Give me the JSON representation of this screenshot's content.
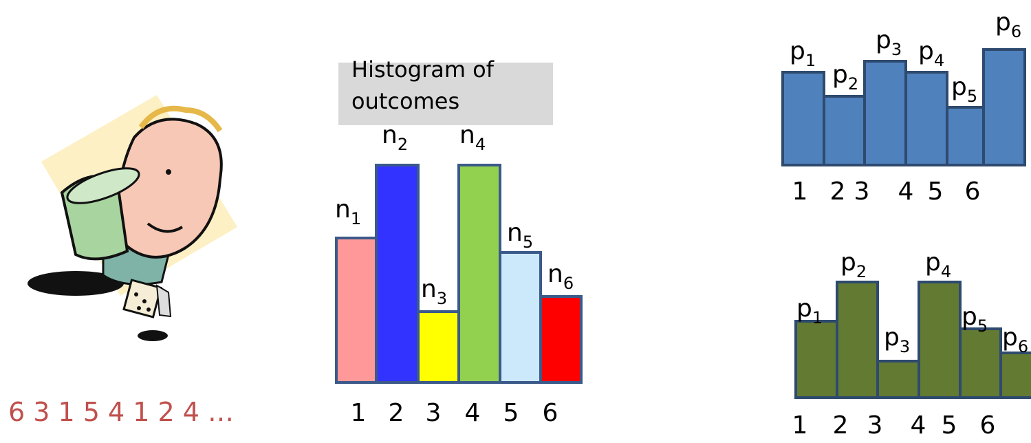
{
  "sequence": "6 3 1 5 4 1 2 4 …",
  "histogram": {
    "title_lines": [
      "Histogram of",
      "outcomes"
    ],
    "bars": [
      {
        "label": "n",
        "subscript": "1",
        "category": "1"
      },
      {
        "label": "n",
        "subscript": "2",
        "category": "2"
      },
      {
        "label": "n",
        "subscript": "3",
        "category": "3"
      },
      {
        "label": "n",
        "subscript": "4",
        "category": "4"
      },
      {
        "label": "n",
        "subscript": "5",
        "category": "5"
      },
      {
        "label": "n",
        "subscript": "6",
        "category": "6"
      }
    ]
  },
  "distribution_a": {
    "bars": [
      {
        "label": "p",
        "subscript": "1",
        "category": "1"
      },
      {
        "label": "p",
        "subscript": "2",
        "category": "2"
      },
      {
        "label": "p",
        "subscript": "3",
        "category": "3"
      },
      {
        "label": "p",
        "subscript": "4",
        "category": "4"
      },
      {
        "label": "p",
        "subscript": "5",
        "category": "5"
      },
      {
        "label": "p",
        "subscript": "6",
        "category": "6"
      }
    ]
  },
  "distribution_b": {
    "bars": [
      {
        "label": "p",
        "subscript": "1",
        "category": "1"
      },
      {
        "label": "p",
        "subscript": "2",
        "category": "2"
      },
      {
        "label": "p",
        "subscript": "3",
        "category": "3"
      },
      {
        "label": "p",
        "subscript": "4",
        "category": "4"
      },
      {
        "label": "p",
        "subscript": "5",
        "category": "5"
      },
      {
        "label": "p",
        "subscript": "6",
        "category": "6"
      }
    ]
  }
}
